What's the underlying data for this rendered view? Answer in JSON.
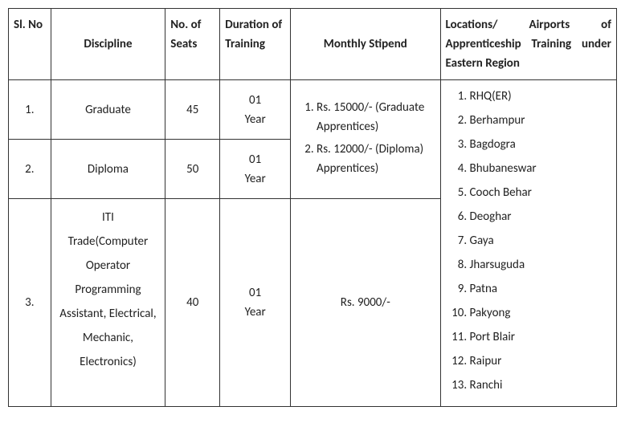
{
  "headers": {
    "slno": "Sl. No",
    "discipline": "Discipline",
    "seats": "No. of Seats",
    "duration": "Duration of Training",
    "stipend": "Monthly Stipend",
    "locations": "Locations/ Airports of Apprenticeship Training under Eastern Region"
  },
  "rows": [
    {
      "slno": "1.",
      "discipline": "Graduate",
      "seats": "45",
      "duration_num": "01",
      "duration_unit": "Year"
    },
    {
      "slno": "2.",
      "discipline": "Diploma",
      "seats": "50",
      "duration_num": "01",
      "duration_unit": "Year"
    },
    {
      "slno": "3.",
      "discipline": "ITI Trade(Computer Operator Programming Assistant, Electrical, Mechanic, Electronics)",
      "seats": "40",
      "duration_num": "01",
      "duration_unit": "Year"
    }
  ],
  "stipend_group": [
    "Rs. 15000/- (Graduate Apprentices)",
    "Rs. 12000/- (Diploma) Apprentices)"
  ],
  "stipend_iti": "Rs. 9000/-",
  "locations": [
    "RHQ(ER)",
    "Berhampur",
    "Bagdogra",
    "Bhubaneswar",
    "Cooch Behar",
    "Deoghar",
    "Gaya",
    "Jharsuguda",
    "Patna",
    "Pakyong",
    "Port Blair",
    "Raipur",
    "Ranchi"
  ],
  "iti_lines": {
    "l1": "ITI",
    "l2": "Trade(Computer",
    "l3": "Operator Programming Assistant, Electrical, Mechanic, Electronics)"
  }
}
